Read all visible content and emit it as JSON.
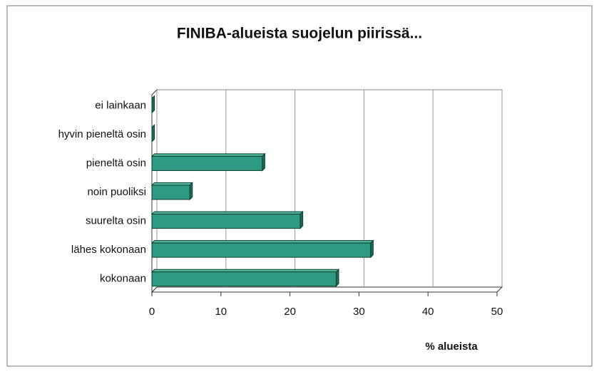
{
  "chart_data": {
    "type": "bar",
    "orientation": "horizontal",
    "title": "FINIBA-alueista suojelun piirissä...",
    "x_label": "% alueista",
    "categories": [
      "ei lainkaan",
      "hyvin pieneltä osin",
      "pieneltä osin",
      "noin puoliksi",
      "suurelta osin",
      "lähes kokonaan",
      "kokonaan"
    ],
    "values": [
      0,
      0,
      16,
      5.5,
      21.5,
      31.7,
      26.7
    ],
    "color": "#2e9a82",
    "xlim": [
      0,
      50
    ],
    "xticks": [
      0,
      10,
      20,
      30,
      40,
      50
    ],
    "grid": true
  }
}
